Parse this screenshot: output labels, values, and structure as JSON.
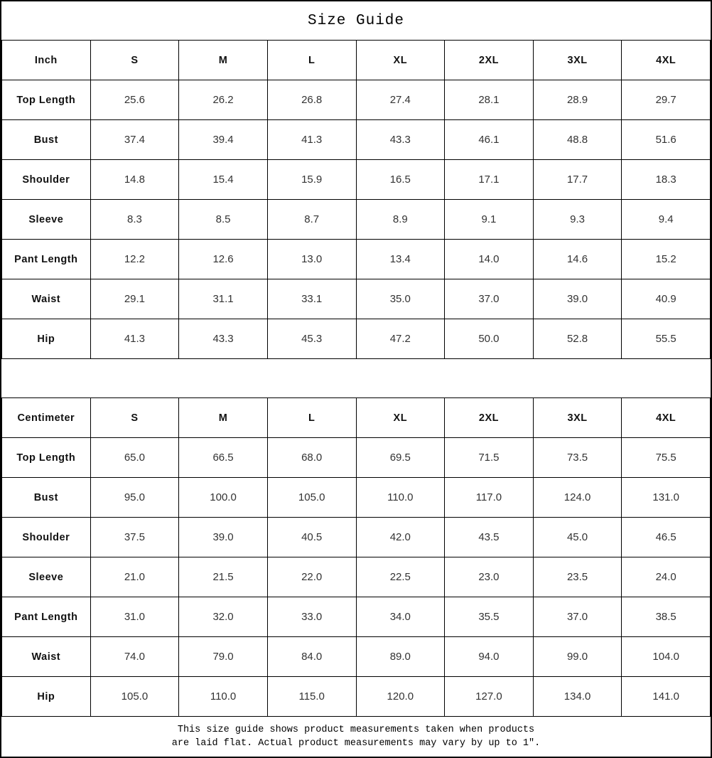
{
  "title": "Size Guide",
  "colors": {
    "border": "#000000",
    "text": "#000000",
    "value_text": "#333333",
    "background": "#ffffff"
  },
  "tables": [
    {
      "unit_label": "Inch",
      "columns": [
        "S",
        "M",
        "L",
        "XL",
        "2XL",
        "3XL",
        "4XL"
      ],
      "rows": [
        {
          "label": "Top Length",
          "values": [
            "25.6",
            "26.2",
            "26.8",
            "27.4",
            "28.1",
            "28.9",
            "29.7"
          ]
        },
        {
          "label": "Bust",
          "values": [
            "37.4",
            "39.4",
            "41.3",
            "43.3",
            "46.1",
            "48.8",
            "51.6"
          ]
        },
        {
          "label": "Shoulder",
          "values": [
            "14.8",
            "15.4",
            "15.9",
            "16.5",
            "17.1",
            "17.7",
            "18.3"
          ]
        },
        {
          "label": "Sleeve",
          "values": [
            "8.3",
            "8.5",
            "8.7",
            "8.9",
            "9.1",
            "9.3",
            "9.4"
          ]
        },
        {
          "label": "Pant Length",
          "values": [
            "12.2",
            "12.6",
            "13.0",
            "13.4",
            "14.0",
            "14.6",
            "15.2"
          ]
        },
        {
          "label": "Waist",
          "values": [
            "29.1",
            "31.1",
            "33.1",
            "35.0",
            "37.0",
            "39.0",
            "40.9"
          ]
        },
        {
          "label": "Hip",
          "values": [
            "41.3",
            "43.3",
            "45.3",
            "47.2",
            "50.0",
            "52.8",
            "55.5"
          ]
        }
      ]
    },
    {
      "unit_label": "Centimeter",
      "columns": [
        "S",
        "M",
        "L",
        "XL",
        "2XL",
        "3XL",
        "4XL"
      ],
      "rows": [
        {
          "label": "Top Length",
          "values": [
            "65.0",
            "66.5",
            "68.0",
            "69.5",
            "71.5",
            "73.5",
            "75.5"
          ]
        },
        {
          "label": "Bust",
          "values": [
            "95.0",
            "100.0",
            "105.0",
            "110.0",
            "117.0",
            "124.0",
            "131.0"
          ]
        },
        {
          "label": "Shoulder",
          "values": [
            "37.5",
            "39.0",
            "40.5",
            "42.0",
            "43.5",
            "45.0",
            "46.5"
          ]
        },
        {
          "label": "Sleeve",
          "values": [
            "21.0",
            "21.5",
            "22.0",
            "22.5",
            "23.0",
            "23.5",
            "24.0"
          ]
        },
        {
          "label": "Pant Length",
          "values": [
            "31.0",
            "32.0",
            "33.0",
            "34.0",
            "35.5",
            "37.0",
            "38.5"
          ]
        },
        {
          "label": "Waist",
          "values": [
            "74.0",
            "79.0",
            "84.0",
            "89.0",
            "94.0",
            "99.0",
            "104.0"
          ]
        },
        {
          "label": "Hip",
          "values": [
            "105.0",
            "110.0",
            "115.0",
            "120.0",
            "127.0",
            "134.0",
            "141.0"
          ]
        }
      ]
    }
  ],
  "footer_note": {
    "line1": "This size guide shows product measurements taken when products",
    "line2": "are laid flat. Actual product measurements may vary by up to 1″."
  }
}
